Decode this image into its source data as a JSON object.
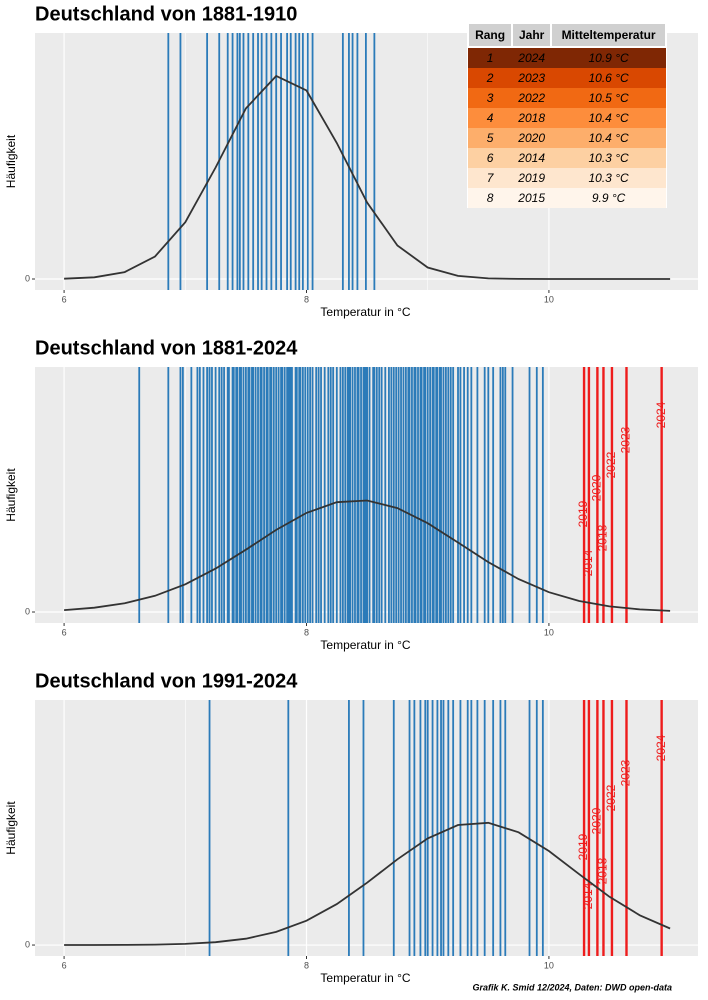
{
  "chart_data": [
    {
      "type": "rug",
      "title": "Deutschland von 1881-1910",
      "x_label": "Temperatur in °C",
      "y_label": "Häufigkeit",
      "xlim": [
        5.76,
        11.23
      ],
      "xticks": [
        6,
        8,
        10
      ],
      "minor_grid": [
        7,
        9
      ],
      "ylim": [
        -0.043,
        0.962
      ],
      "yticks": [
        0
      ],
      "color": "#2b7bb9",
      "values": [
        6.86,
        6.96,
        7.18,
        7.28,
        7.35,
        7.39,
        7.43,
        7.45,
        7.48,
        7.52,
        7.56,
        7.6,
        7.63,
        7.67,
        7.71,
        7.75,
        7.79,
        7.84,
        7.87,
        7.91,
        7.94,
        7.97,
        8.01,
        8.05,
        8.3,
        8.35,
        8.38,
        8.42,
        8.49,
        8.56
      ],
      "highlight_color": "#ee1c1c",
      "highlight_labels": [],
      "highlight_values": [],
      "curve": {
        "color": "#333333",
        "x": [
          6,
          6.25,
          6.5,
          6.75,
          7,
          7.25,
          7.5,
          7.75,
          8,
          8.25,
          8.5,
          8.75,
          9,
          9.25,
          9.5,
          9.75,
          10,
          10.25,
          10.5,
          10.75,
          11
        ],
        "values": [
          0.0012,
          0.0065,
          0.027,
          0.088,
          0.222,
          0.436,
          0.667,
          0.794,
          0.737,
          0.532,
          0.299,
          0.131,
          0.045,
          0.012,
          0.0025,
          0.0004,
          0,
          0,
          0,
          0,
          0
        ]
      }
    },
    {
      "type": "rug",
      "title": "Deutschland von 1881-2024",
      "x_label": "Temperatur in °C",
      "y_label": "Häufigkeit",
      "xlim": [
        5.76,
        11.23
      ],
      "xticks": [
        6,
        8,
        10
      ],
      "minor_grid": [
        7,
        9
      ],
      "ylim": [
        -0.046,
        1.026
      ],
      "yticks": [
        0
      ],
      "color": "#2b7bb9",
      "values": [
        6.86,
        6.96,
        7.18,
        7.28,
        7.35,
        7.39,
        7.43,
        7.45,
        7.48,
        7.52,
        7.56,
        7.6,
        7.63,
        7.67,
        7.71,
        7.75,
        7.79,
        7.84,
        7.87,
        7.91,
        7.94,
        7.97,
        8.01,
        8.05,
        8.3,
        8.35,
        8.38,
        8.42,
        8.49,
        8.56,
        6.62,
        6.98,
        7.05,
        7.1,
        7.12,
        7.15,
        7.2,
        7.22,
        7.25,
        7.3,
        7.32,
        7.36,
        7.4,
        7.42,
        7.46,
        7.5,
        7.53,
        7.55,
        7.58,
        7.62,
        7.65,
        7.68,
        7.7,
        7.73,
        7.77,
        7.8,
        7.82,
        7.86,
        7.88,
        7.92,
        7.95,
        7.99,
        8.03,
        8.08,
        8.1,
        8.12,
        8.15,
        8.18,
        8.2,
        8.22,
        8.25,
        8.28,
        8.32,
        8.34,
        8.36,
        8.4,
        8.43,
        8.45,
        8.48,
        8.5,
        8.52,
        8.55,
        8.58,
        8.6,
        8.62,
        8.65,
        8.68,
        8.7,
        8.74,
        8.76,
        8.78,
        8.8,
        8.82,
        8.84,
        8.87,
        8.9,
        8.92,
        8.95,
        8.97,
        9.02,
        9.05,
        9.07,
        9.1,
        9.15,
        9.19,
        9.25,
        9.3,
        9.5,
        9.62,
        9.7,
        7.2,
        7.85,
        8.35,
        8.47,
        8.72,
        8.85,
        8.89,
        8.94,
        8.98,
        9.0,
        9.04,
        9.08,
        9.11,
        9.13,
        9.17,
        9.21,
        9.27,
        9.33,
        9.36,
        9.41,
        9.47,
        9.54,
        9.6,
        9.64,
        9.84,
        9.9,
        9.95
      ],
      "highlight_color": "#ee1c1c",
      "highlight_labels": [
        "2014",
        "2019",
        "2018",
        "2020",
        "2022",
        "2023",
        "2024"
      ],
      "highlight_values": [
        10.33,
        10.29,
        10.45,
        10.4,
        10.52,
        10.64,
        10.93
      ],
      "curve": {
        "color": "#333333",
        "x": [
          6,
          6.25,
          6.5,
          6.75,
          7,
          7.25,
          7.5,
          7.75,
          8,
          8.25,
          8.5,
          8.75,
          9,
          9.25,
          9.5,
          9.75,
          10,
          10.25,
          10.5,
          10.75,
          11
        ],
        "values": [
          0.0082,
          0.018,
          0.0366,
          0.068,
          0.116,
          0.182,
          0.261,
          0.344,
          0.415,
          0.46,
          0.467,
          0.435,
          0.372,
          0.291,
          0.209,
          0.138,
          0.083,
          0.046,
          0.0235,
          0.011,
          0.0047
        ]
      }
    },
    {
      "type": "rug",
      "title": "Deutschland von 1991-2024",
      "x_label": "Temperatur in °C",
      "y_label": "Häufigkeit",
      "xlim": [
        5.76,
        11.23
      ],
      "xticks": [
        6,
        8,
        10
      ],
      "minor_grid": [
        7,
        9
      ],
      "ylim": [
        -0.045,
        1.006
      ],
      "yticks": [
        0
      ],
      "color": "#2b7bb9",
      "values": [
        7.2,
        7.85,
        8.35,
        8.47,
        8.72,
        8.85,
        8.89,
        8.94,
        8.98,
        9.0,
        9.04,
        9.08,
        9.11,
        9.13,
        9.17,
        9.21,
        9.27,
        9.33,
        9.36,
        9.41,
        9.47,
        9.54,
        9.6,
        9.64,
        9.84,
        9.9,
        9.95
      ],
      "highlight_color": "#ee1c1c",
      "highlight_labels": [
        "2014",
        "2019",
        "2018",
        "2020",
        "2022",
        "2023",
        "2024"
      ],
      "highlight_values": [
        10.33,
        10.29,
        10.45,
        10.4,
        10.52,
        10.64,
        10.93
      ],
      "curve": {
        "color": "#333333",
        "x": [
          6,
          6.25,
          6.5,
          6.75,
          7,
          7.25,
          7.5,
          7.75,
          8,
          8.25,
          8.5,
          8.75,
          9,
          9.25,
          9.5,
          9.75,
          10,
          10.25,
          10.5,
          10.75,
          11
        ],
        "values": [
          0,
          0.0002,
          0.0005,
          0.0017,
          0.0046,
          0.0116,
          0.026,
          0.054,
          0.1,
          0.168,
          0.256,
          0.352,
          0.438,
          0.493,
          0.502,
          0.463,
          0.386,
          0.291,
          0.198,
          0.122,
          0.068
        ]
      }
    }
  ],
  "table": {
    "header": [
      "Rang",
      "Jahr",
      "Mitteltemperatur"
    ],
    "row_colors": [
      "#7f2704",
      "#d94801",
      "#f16913",
      "#fd8d3c",
      "#fdae6b",
      "#fdd0a2",
      "#fee6ce",
      "#fff5eb"
    ],
    "rows": [
      [
        "1",
        "2024",
        "10.9 °C"
      ],
      [
        "2",
        "2023",
        "10.6 °C"
      ],
      [
        "3",
        "2022",
        "10.5 °C"
      ],
      [
        "4",
        "2018",
        "10.4 °C"
      ],
      [
        "5",
        "2020",
        "10.4 °C"
      ],
      [
        "6",
        "2014",
        "10.3 °C"
      ],
      [
        "7",
        "2019",
        "10.3 °C"
      ],
      [
        "8",
        "2015",
        "9.9 °C"
      ]
    ]
  },
  "footer": "Grafik K. Smid 12/2024, Daten:  DWD open-data"
}
